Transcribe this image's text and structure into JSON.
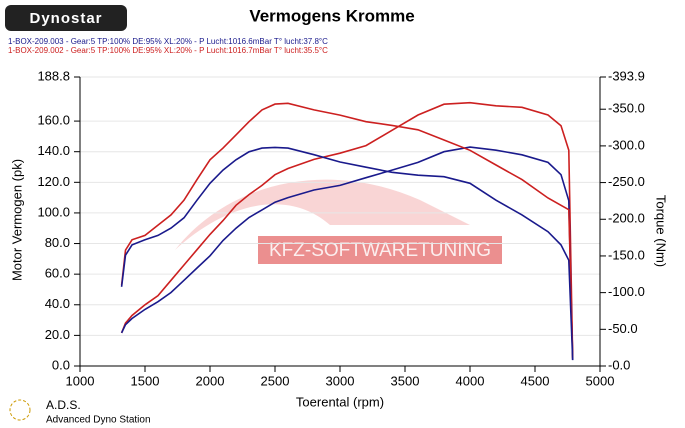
{
  "chart_data": {
    "type": "line",
    "title": "Vermogens Kromme",
    "legend_lines": [
      {
        "text": "1-BOX-209.003 - Gear:5 TP:100% DE:95% XL:20%   - P Lucht:1016.6mBar T° lucht:37.8°C",
        "color": "#1a1a8c"
      },
      {
        "text": "1-BOX-209.002 - Gear:5 TP:100% DE:95% XL:20%   - P Lucht:1016.7mBar T° lucht:35.5°C",
        "color": "#cc2020"
      }
    ],
    "annotations": [
      "Dynostar",
      "KFZ-SOFTWARETUNING",
      "A.D.S.",
      "Advanced Dyno Station"
    ],
    "x_label": "Toerental (rpm)",
    "y_label": "Motor Vermogen (pk)",
    "y2_label": "Torque (Nm)",
    "x": [
      1320,
      1350,
      1400,
      1500,
      1600,
      1700,
      1800,
      1900,
      2000,
      2100,
      2200,
      2300,
      2400,
      2500,
      2600,
      2800,
      3000,
      3200,
      3400,
      3600,
      3800,
      4000,
      4200,
      4400,
      4600,
      4700,
      4760,
      4790
    ],
    "xlim": [
      1000,
      5000
    ],
    "xticks": [
      1000,
      1500,
      2000,
      2500,
      3000,
      3500,
      4000,
      4500,
      5000
    ],
    "ylim": [
      0,
      188.8
    ],
    "yticks": [
      {
        "value": 0,
        "label": "0.0"
      },
      {
        "value": 20,
        "label": "20.0"
      },
      {
        "value": 40,
        "label": "40.0"
      },
      {
        "value": 60,
        "label": "60.0"
      },
      {
        "value": 80,
        "label": "80.0"
      },
      {
        "value": 100,
        "label": "100.0"
      },
      {
        "value": 120,
        "label": "120.0"
      },
      {
        "value": 140,
        "label": "140.0"
      },
      {
        "value": 160,
        "label": "160.0"
      },
      188.8
    ],
    "y2lim": [
      0,
      -393.9
    ],
    "y2ticks": [
      {
        "value": 0,
        "label": "-0.0"
      },
      {
        "value": -50,
        "label": "-50.0"
      },
      {
        "value": -100,
        "label": "-100.0"
      },
      {
        "value": -150,
        "label": "-150.0"
      },
      {
        "value": -200,
        "label": "-200.0"
      },
      {
        "value": -250,
        "label": "-250.0"
      },
      {
        "value": -300,
        "label": "-300.0"
      },
      {
        "value": -350,
        "label": "-350.0"
      },
      -393.9
    ],
    "grid": true,
    "series": [
      {
        "color": "#cc2020",
        "values": [
          21.6,
          28,
          33,
          40,
          46,
          56,
          66,
          76,
          86,
          95,
          105,
          112,
          118,
          125,
          129,
          135,
          139,
          144,
          154,
          164,
          171,
          172,
          170,
          169,
          164,
          157,
          141,
          4
        ]
      },
      {
        "color": "#1a1a8c",
        "values": [
          21.6,
          27,
          31,
          37,
          42,
          48,
          56,
          64,
          72,
          82,
          90,
          97,
          102,
          107,
          110,
          115,
          118,
          123,
          128,
          133,
          140,
          143,
          141,
          138,
          133,
          125,
          108,
          4
        ]
      },
      {
        "color": "#cc2020",
        "axis": "y2",
        "values": [
          -110,
          -158,
          -172,
          -178,
          -192,
          -206,
          -226,
          -254,
          -281,
          -297,
          -315,
          -333,
          -349,
          -357,
          -358,
          -349,
          -342,
          -333,
          -328,
          -322,
          -308,
          -294,
          -274,
          -254,
          -229,
          -219,
          -213,
          -11
        ]
      },
      {
        "color": "#1a1a8c",
        "axis": "y2",
        "values": [
          -108,
          -151,
          -165,
          -172,
          -178,
          -188,
          -202,
          -226,
          -249,
          -267,
          -281,
          -292,
          -297,
          -298,
          -297,
          -288,
          -278,
          -271,
          -264,
          -260,
          -258,
          -249,
          -226,
          -206,
          -183,
          -165,
          -144,
          -8
        ]
      }
    ]
  }
}
